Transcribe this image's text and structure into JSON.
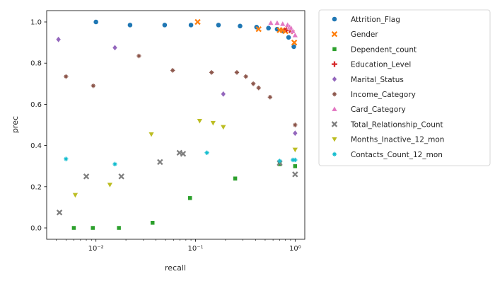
{
  "chart_data": {
    "type": "scatter",
    "xscale": "log",
    "xlabel": "recall",
    "ylabel": "prec",
    "xlim": [
      0.0032,
      1.25
    ],
    "ylim": [
      -0.055,
      1.055
    ],
    "grid": false,
    "legend_location": "outside-right",
    "x_ticks": [
      0.01,
      0.1,
      1
    ],
    "x_tick_labels": [
      "10⁻²",
      "10⁻¹",
      "10⁰"
    ],
    "y_ticks": [
      0.0,
      0.2,
      0.4,
      0.6,
      0.8,
      1.0
    ],
    "y_tick_labels": [
      "0.0",
      "0.2",
      "0.4",
      "0.6",
      "0.8",
      "1.0"
    ],
    "series": [
      {
        "name": "Attrition_Flag",
        "color": "#1f77b4",
        "marker": "circle",
        "points": [
          [
            0.01,
            1.0
          ],
          [
            0.022,
            0.985
          ],
          [
            0.049,
            0.985
          ],
          [
            0.09,
            0.985
          ],
          [
            0.17,
            0.985
          ],
          [
            0.28,
            0.98
          ],
          [
            0.41,
            0.975
          ],
          [
            0.54,
            0.97
          ],
          [
            0.66,
            0.965
          ],
          [
            0.76,
            0.955
          ],
          [
            0.86,
            0.925
          ],
          [
            0.97,
            0.88
          ]
        ]
      },
      {
        "name": "Gender",
        "color": "#ff7f0e",
        "marker": "x",
        "points": [
          [
            0.105,
            1.0
          ],
          [
            0.43,
            0.965
          ],
          [
            0.7,
            0.96
          ],
          [
            0.75,
            0.96
          ],
          [
            0.8,
            0.955
          ],
          [
            0.98,
            0.9
          ]
        ]
      },
      {
        "name": "Dependent_count",
        "color": "#2ca02c",
        "marker": "square",
        "points": [
          [
            0.006,
            0.0
          ],
          [
            0.0093,
            0.0
          ],
          [
            0.017,
            0.0
          ],
          [
            0.037,
            0.025
          ],
          [
            0.088,
            0.145
          ],
          [
            0.25,
            0.24
          ],
          [
            0.7,
            0.31
          ],
          [
            1.0,
            0.3
          ]
        ]
      },
      {
        "name": "Education_Level",
        "color": "#d62728",
        "marker": "plus",
        "points": [
          [
            0.82,
            0.965
          ],
          [
            0.88,
            0.96
          ],
          [
            0.93,
            0.955
          ]
        ]
      },
      {
        "name": "Marital_Status",
        "color": "#9467bd",
        "marker": "diamond",
        "points": [
          [
            0.0042,
            0.915
          ],
          [
            0.0155,
            0.875
          ],
          [
            0.19,
            0.65
          ],
          [
            1.0,
            0.46
          ]
        ]
      },
      {
        "name": "Income_Category",
        "color": "#8c564b",
        "marker": "star",
        "points": [
          [
            0.005,
            0.735
          ],
          [
            0.0094,
            0.69
          ],
          [
            0.027,
            0.835
          ],
          [
            0.059,
            0.765
          ],
          [
            0.145,
            0.755
          ],
          [
            0.26,
            0.755
          ],
          [
            0.32,
            0.735
          ],
          [
            0.38,
            0.7
          ],
          [
            0.43,
            0.68
          ],
          [
            0.56,
            0.635
          ],
          [
            1.0,
            0.5
          ]
        ]
      },
      {
        "name": "Card_Category",
        "color": "#e377c2",
        "marker": "triangle",
        "points": [
          [
            0.57,
            0.995
          ],
          [
            0.66,
            0.995
          ],
          [
            0.75,
            0.99
          ],
          [
            0.84,
            0.985
          ],
          [
            0.88,
            0.975
          ],
          [
            0.91,
            0.97
          ],
          [
            0.95,
            0.955
          ],
          [
            1.0,
            0.935
          ]
        ]
      },
      {
        "name": "Total_Relationship_Count",
        "color": "#7f7f7f",
        "marker": "x",
        "points": [
          [
            0.0043,
            0.075
          ],
          [
            0.008,
            0.25
          ],
          [
            0.018,
            0.25
          ],
          [
            0.044,
            0.32
          ],
          [
            0.069,
            0.365
          ],
          [
            0.075,
            0.36
          ],
          [
            0.7,
            0.315
          ],
          [
            1.0,
            0.26
          ]
        ]
      },
      {
        "name": "Months_Inactive_12_mon",
        "color": "#bcbd22",
        "marker": "triangle-down",
        "points": [
          [
            0.0062,
            0.16
          ],
          [
            0.0138,
            0.21
          ],
          [
            0.036,
            0.455
          ],
          [
            0.11,
            0.52
          ],
          [
            0.15,
            0.51
          ],
          [
            0.19,
            0.49
          ],
          [
            1.0,
            0.38
          ]
        ]
      },
      {
        "name": "Contacts_Count_12_mon",
        "color": "#17becf",
        "marker": "star",
        "points": [
          [
            0.005,
            0.335
          ],
          [
            0.0155,
            0.31
          ],
          [
            0.13,
            0.365
          ],
          [
            0.7,
            0.325
          ],
          [
            0.95,
            0.33
          ],
          [
            1.0,
            0.33
          ]
        ]
      }
    ]
  }
}
